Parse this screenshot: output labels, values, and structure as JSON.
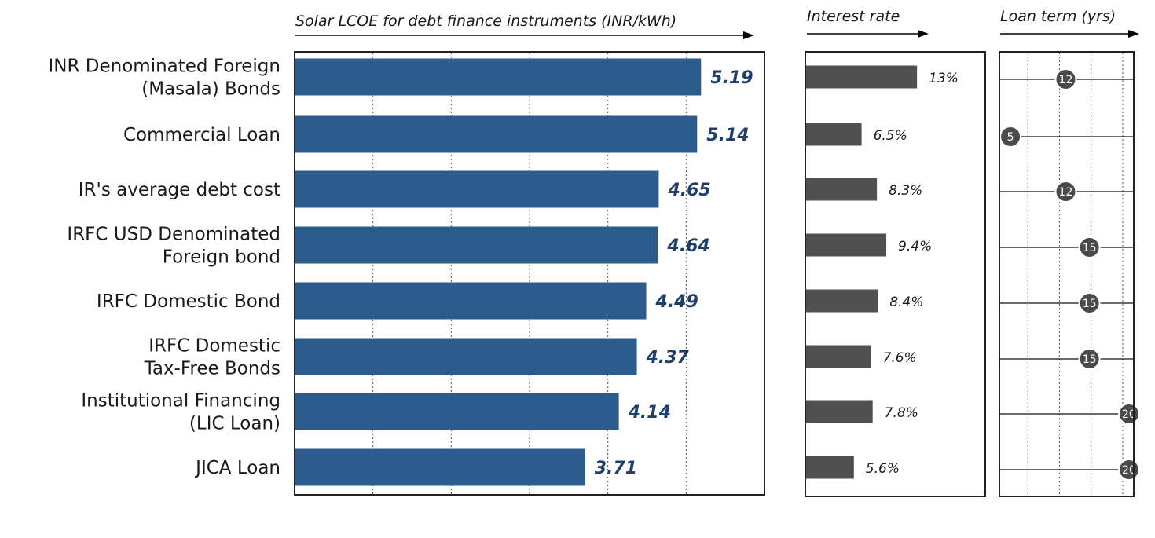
{
  "colors": {
    "lcoe_bar": "#2c5b8c",
    "lcoe_label": "#1f3f6a",
    "rate_bar": "#505050",
    "term_marker": "#4a4a4a"
  },
  "chart_data": [
    {
      "type": "bar",
      "orientation": "horizontal",
      "title": "Solar LCOE for debt finance instruments (INR/kWh)",
      "categories": [
        [
          "INR Denominated Foreign",
          "(Masala) Bonds"
        ],
        [
          "Commercial Loan"
        ],
        [
          "IR's average debt cost"
        ],
        [
          "IRFC USD Denominated",
          "Foreign bond"
        ],
        [
          "IRFC Domestic Bond"
        ],
        [
          "IRFC Domestic",
          "Tax-Free Bonds"
        ],
        [
          "Institutional Financing",
          "(LIC Loan)"
        ],
        [
          "JICA Loan"
        ]
      ],
      "values": [
        5.19,
        5.14,
        4.65,
        4.64,
        4.49,
        4.37,
        4.14,
        3.71
      ],
      "value_labels": [
        "5.19",
        "5.14",
        "4.65",
        "4.64",
        "4.49",
        "4.37",
        "4.14",
        "3.71"
      ],
      "xlim": [
        0,
        6
      ],
      "grid": "vertical dotted"
    },
    {
      "type": "bar",
      "orientation": "horizontal",
      "title": "Interest rate",
      "values": [
        13,
        6.5,
        8.3,
        9.4,
        8.4,
        7.6,
        7.8,
        5.6
      ],
      "value_labels": [
        "13%",
        "6.5%",
        "8.3%",
        "9.4%",
        "8.4%",
        "7.6%",
        "7.8%",
        "5.6%"
      ],
      "xlim": [
        0,
        21
      ]
    },
    {
      "type": "scatter",
      "title": "Loan term (yrs)",
      "values": [
        12,
        5,
        12,
        15,
        15,
        15,
        20,
        20
      ],
      "value_labels": [
        "12",
        "5",
        "12",
        "15",
        "15",
        "15",
        "20",
        "20"
      ],
      "xlim": [
        4,
        21
      ],
      "grid": "vertical dotted"
    }
  ]
}
